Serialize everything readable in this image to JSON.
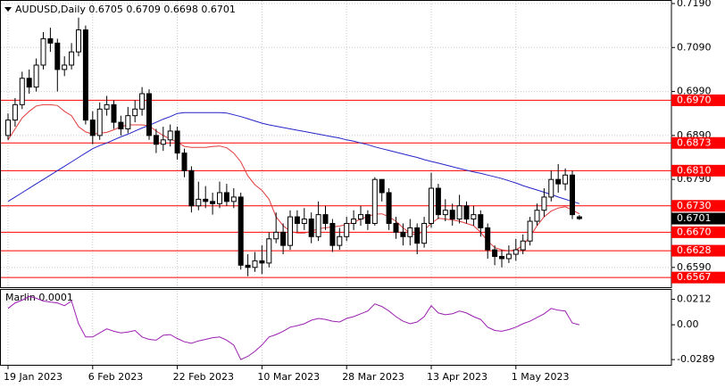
{
  "header": {
    "symbol": "AUDUSD,Daily",
    "ohlc_labels": [
      "0.6705",
      "0.6709",
      "0.6698",
      "0.6701"
    ]
  },
  "chart_data": {
    "type": "candlestick",
    "categories": [
      "19 Jan 2023",
      null,
      null,
      null,
      null,
      null,
      null,
      null,
      null,
      null,
      null,
      null,
      "6 Feb 2023",
      null,
      null,
      null,
      null,
      null,
      null,
      null,
      null,
      null,
      null,
      null,
      "22 Feb 2023",
      null,
      null,
      null,
      null,
      null,
      null,
      null,
      null,
      null,
      null,
      null,
      "10 Mar 2023",
      null,
      null,
      null,
      null,
      null,
      null,
      null,
      null,
      null,
      null,
      null,
      "28 Mar 2023",
      null,
      null,
      null,
      null,
      null,
      null,
      null,
      null,
      null,
      null,
      null,
      "13 Apr 2023",
      null,
      null,
      null,
      null,
      null,
      null,
      null,
      null,
      null,
      null,
      null,
      "1 May 2023",
      null,
      null,
      null,
      null,
      null,
      null,
      null,
      null,
      null
    ],
    "open": [
      0.689,
      0.6925,
      0.696,
      0.702,
      0.7,
      0.705,
      0.711,
      0.71,
      0.704,
      0.705,
      0.708,
      0.713,
      0.6925,
      0.689,
      0.695,
      0.696,
      0.692,
      0.6905,
      0.6935,
      0.695,
      0.6985,
      0.689,
      0.687,
      0.688,
      0.69,
      0.685,
      0.681,
      0.673,
      0.6745,
      0.674,
      0.6735,
      0.676,
      0.674,
      0.675,
      0.6595,
      0.659,
      0.6605,
      0.66,
      0.6655,
      0.667,
      0.664,
      0.6705,
      0.669,
      0.67,
      0.666,
      0.671,
      0.669,
      0.664,
      0.666,
      0.669,
      0.67,
      0.671,
      0.669,
      0.679,
      0.676,
      0.669,
      0.667,
      0.666,
      0.668,
      0.6645,
      0.669,
      0.677,
      0.671,
      0.672,
      0.67,
      0.673,
      0.67,
      0.671,
      0.668,
      0.663,
      0.6615,
      0.661,
      0.662,
      0.663,
      0.665,
      0.6695,
      0.672,
      0.675,
      0.679,
      0.678,
      0.68,
      0.6705
    ],
    "high": [
      0.694,
      0.6975,
      0.7035,
      0.704,
      0.7065,
      0.7125,
      0.7135,
      0.711,
      0.707,
      0.71,
      0.7158,
      0.714,
      0.6945,
      0.6965,
      0.698,
      0.697,
      0.6935,
      0.6955,
      0.697,
      0.7,
      0.6995,
      0.6905,
      0.691,
      0.6915,
      0.691,
      0.686,
      0.682,
      0.6785,
      0.6775,
      0.676,
      0.6785,
      0.678,
      0.677,
      0.676,
      0.662,
      0.6625,
      0.664,
      0.667,
      0.6715,
      0.669,
      0.672,
      0.672,
      0.6725,
      0.6715,
      0.674,
      0.673,
      0.67,
      0.668,
      0.6705,
      0.672,
      0.673,
      0.672,
      0.6795,
      0.679,
      0.677,
      0.6705,
      0.669,
      0.67,
      0.669,
      0.6705,
      0.6805,
      0.678,
      0.6745,
      0.6735,
      0.6755,
      0.674,
      0.673,
      0.672,
      0.669,
      0.664,
      0.663,
      0.664,
      0.6655,
      0.6665,
      0.6705,
      0.6735,
      0.677,
      0.681,
      0.6825,
      0.6815,
      0.681,
      0.6709
    ],
    "low": [
      0.688,
      0.691,
      0.695,
      0.6985,
      0.699,
      0.704,
      0.708,
      0.699,
      0.7025,
      0.704,
      0.707,
      0.6915,
      0.687,
      0.688,
      0.6935,
      0.6905,
      0.689,
      0.6895,
      0.692,
      0.6935,
      0.688,
      0.685,
      0.6855,
      0.6865,
      0.6835,
      0.6795,
      0.6715,
      0.672,
      0.6725,
      0.671,
      0.6725,
      0.673,
      0.6725,
      0.6585,
      0.657,
      0.658,
      0.6575,
      0.659,
      0.6645,
      0.662,
      0.663,
      0.667,
      0.6675,
      0.6645,
      0.665,
      0.6675,
      0.6625,
      0.663,
      0.665,
      0.6675,
      0.6685,
      0.6675,
      0.6685,
      0.674,
      0.6675,
      0.6655,
      0.664,
      0.664,
      0.662,
      0.6635,
      0.668,
      0.67,
      0.6695,
      0.6685,
      0.669,
      0.669,
      0.6685,
      0.666,
      0.661,
      0.6595,
      0.659,
      0.66,
      0.6605,
      0.662,
      0.664,
      0.6685,
      0.6705,
      0.674,
      0.676,
      0.6765,
      0.67,
      0.6698
    ],
    "close": [
      0.6925,
      0.696,
      0.702,
      0.7,
      0.705,
      0.711,
      0.71,
      0.704,
      0.705,
      0.708,
      0.713,
      0.6925,
      0.689,
      0.695,
      0.696,
      0.692,
      0.6905,
      0.6935,
      0.695,
      0.6985,
      0.689,
      0.687,
      0.688,
      0.69,
      0.685,
      0.681,
      0.673,
      0.6745,
      0.674,
      0.6735,
      0.676,
      0.674,
      0.675,
      0.6595,
      0.659,
      0.6605,
      0.66,
      0.6655,
      0.667,
      0.664,
      0.6705,
      0.669,
      0.67,
      0.666,
      0.671,
      0.669,
      0.664,
      0.666,
      0.669,
      0.67,
      0.671,
      0.669,
      0.679,
      0.676,
      0.669,
      0.667,
      0.666,
      0.668,
      0.6645,
      0.669,
      0.677,
      0.671,
      0.672,
      0.67,
      0.673,
      0.67,
      0.671,
      0.668,
      0.663,
      0.6615,
      0.661,
      0.662,
      0.663,
      0.665,
      0.6695,
      0.672,
      0.675,
      0.679,
      0.678,
      0.68,
      0.671,
      0.6701
    ],
    "up_color": "#ffffff",
    "down_color": "#000000",
    "outline_color": "#000000",
    "overlays": [
      {
        "color": "#e23b3b",
        "values": [
          0.688,
          0.6905,
          0.693,
          0.6945,
          0.6957,
          0.696,
          0.696,
          0.6958,
          0.6945,
          0.6935,
          0.691,
          0.6898,
          0.6893,
          0.6895,
          0.6897,
          0.6903,
          0.691,
          0.6914,
          0.6914,
          0.6914,
          0.6912,
          0.69,
          0.689,
          0.6882,
          0.6875,
          0.6865,
          0.6863,
          0.6863,
          0.6863,
          0.6865,
          0.6866,
          0.6862,
          0.685,
          0.683,
          0.6798,
          0.6778,
          0.6765,
          0.6745,
          0.6705,
          0.6685,
          0.6672,
          0.6668,
          0.6668,
          0.6672,
          0.6678,
          0.668,
          0.6682,
          0.6684,
          0.6688,
          0.6692,
          0.67,
          0.6706,
          0.6711,
          0.6712,
          0.6705,
          0.6695,
          0.668,
          0.6668,
          0.6663,
          0.6675,
          0.669,
          0.6702,
          0.67,
          0.6698,
          0.6695,
          0.669,
          0.6685,
          0.667,
          0.665,
          0.6635,
          0.663,
          0.6628,
          0.663,
          0.664,
          0.666,
          0.6685,
          0.6705,
          0.6718,
          0.6725,
          0.6728,
          0.672,
          0.6712
        ]
      },
      {
        "color": "#2424c8",
        "values": [
          0.674,
          0.675,
          0.676,
          0.677,
          0.678,
          0.679,
          0.68,
          0.681,
          0.682,
          0.683,
          0.684,
          0.685,
          0.686,
          0.6867,
          0.6873,
          0.688,
          0.6887,
          0.6893,
          0.69,
          0.6907,
          0.6913,
          0.692,
          0.6927,
          0.6933,
          0.694,
          0.6942,
          0.6942,
          0.6942,
          0.6942,
          0.6942,
          0.6942,
          0.6941,
          0.6937,
          0.6933,
          0.6928,
          0.6923,
          0.6918,
          0.6914,
          0.6911,
          0.6908,
          0.6905,
          0.6902,
          0.6899,
          0.6896,
          0.6893,
          0.689,
          0.6887,
          0.6884,
          0.688,
          0.6877,
          0.6873,
          0.6869,
          0.6864,
          0.686,
          0.6856,
          0.6852,
          0.6848,
          0.6844,
          0.684,
          0.6835,
          0.6831,
          0.6827,
          0.6823,
          0.6819,
          0.6815,
          0.6811,
          0.6807,
          0.6804,
          0.68,
          0.6796,
          0.6792,
          0.6787,
          0.6782,
          0.6776,
          0.6771,
          0.6766,
          0.6761,
          0.6756,
          0.675,
          0.6745,
          0.674,
          0.6735
        ]
      }
    ],
    "levels": [
      {
        "value": 0.697,
        "label": "0.6970"
      },
      {
        "value": 0.6873,
        "label": "0.6873"
      },
      {
        "value": 0.681,
        "label": "0.6810"
      },
      {
        "value": 0.673,
        "label": "0.6730"
      },
      {
        "value": 0.667,
        "label": "0.6670"
      },
      {
        "value": 0.6628,
        "label": "0.6628"
      },
      {
        "value": 0.6567,
        "label": "0.6567"
      }
    ],
    "level_color": "#ff0000",
    "last_price": {
      "value": 0.6701,
      "label": "0.6701"
    },
    "ylim": [
      0.6545,
      0.7198
    ],
    "yticks": [
      {
        "value": 0.719,
        "label": "0.7190"
      },
      {
        "value": 0.709,
        "label": "0.7090"
      },
      {
        "value": 0.699,
        "label": "0.6990"
      },
      {
        "value": 0.689,
        "label": "0.6890"
      },
      {
        "value": 0.679,
        "label": "0.6790"
      },
      {
        "value": 0.659,
        "label": "0.6590"
      }
    ],
    "grid": true,
    "indicator": {
      "type": "line",
      "title": "Marlin 0.0001",
      "color": "#9b1fb0",
      "values": [
        0.0136,
        0.0182,
        0.0205,
        0.0235,
        0.022,
        0.0197,
        0.0189,
        0.0182,
        0.0159,
        0.0197,
        0.0008,
        -0.0101,
        -0.0101,
        -0.0067,
        -0.0034,
        -0.0054,
        -0.0067,
        -0.006,
        -0.0047,
        -0.0101,
        -0.0121,
        -0.0128,
        -0.0087,
        -0.0081,
        -0.0114,
        -0.0141,
        -0.0154,
        -0.0134,
        -0.0121,
        -0.0107,
        -0.0101,
        -0.0128,
        -0.0168,
        -0.0289,
        -0.0262,
        -0.0221,
        -0.0168,
        -0.0101,
        -0.0081,
        -0.0054,
        -0.002,
        -0.0007,
        0.0008,
        0.0038,
        0.0053,
        0.0045,
        0.003,
        0.0023,
        0.0053,
        0.0068,
        0.0091,
        0.0114,
        0.0174,
        0.0152,
        0.0114,
        0.0068,
        0.003,
        0.0008,
        0.0023,
        0.0068,
        0.0159,
        0.0098,
        0.0083,
        0.0091,
        0.0114,
        0.0098,
        0.0068,
        0.0045,
        -0.002,
        -0.0047,
        -0.0054,
        -0.004,
        -0.002,
        0.0008,
        0.003,
        0.0061,
        0.0091,
        0.0136,
        0.0121,
        0.0114,
        0.0015,
        0.0
      ],
      "ylim": [
        -0.034,
        0.029
      ],
      "yticks": [
        0.0212,
        {
          "value": 0,
          "label": "0.00"
        },
        -0.0289
      ]
    }
  }
}
